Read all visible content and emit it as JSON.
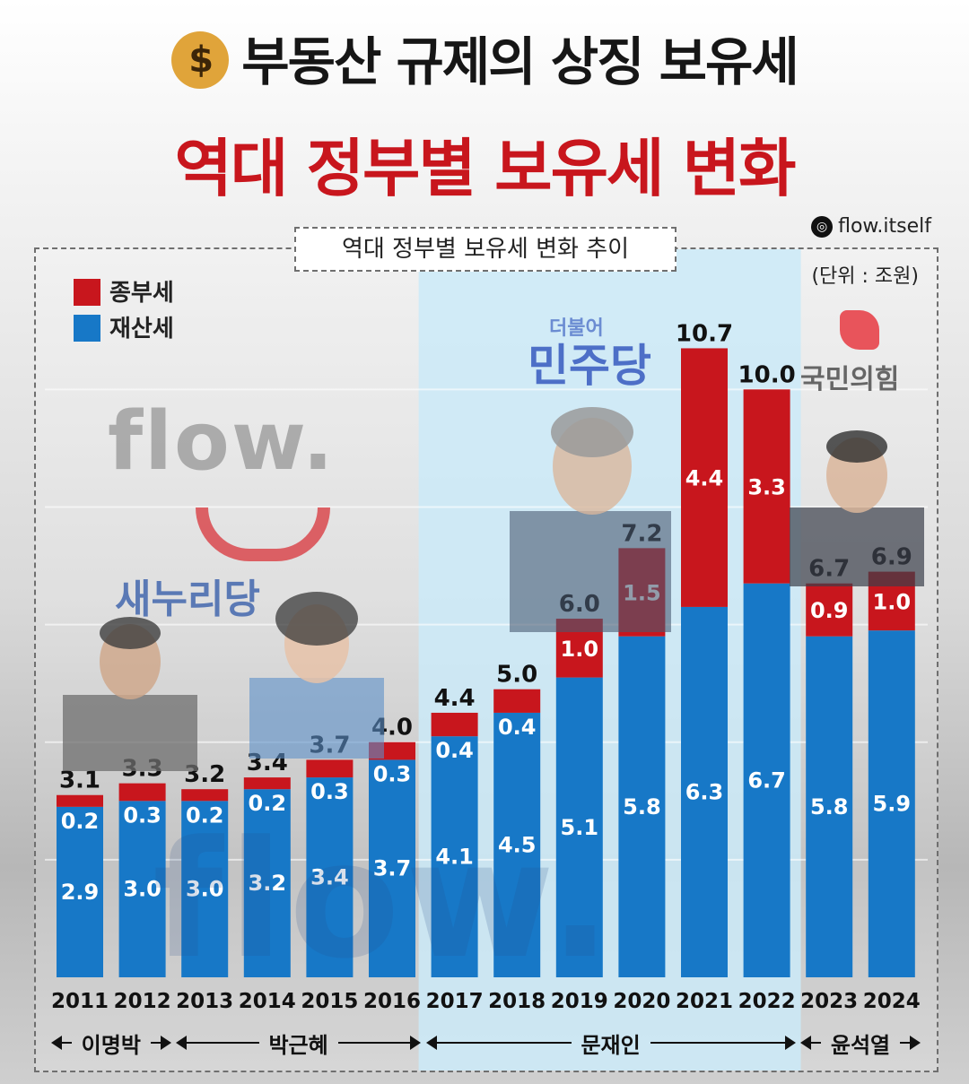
{
  "header": {
    "title": "부동산 규제의 상징 보유세",
    "subtitle": "역대 정부별 보유세 변화",
    "bag_icon": "money-bag-icon",
    "handle": "flow.itself",
    "handle_icon": "instagram-icon"
  },
  "chart_data": {
    "type": "bar",
    "stacked": true,
    "title": "역대 정부별 보유세 변화 추이",
    "unit": "(단위 : 조원)",
    "categories": [
      "2011",
      "2012",
      "2013",
      "2014",
      "2015",
      "2016",
      "2017",
      "2018",
      "2019",
      "2020",
      "2021",
      "2022",
      "2023",
      "2024"
    ],
    "series": [
      {
        "name": "재산세",
        "color": "#1778c7",
        "values": [
          2.9,
          3.0,
          3.0,
          3.2,
          3.4,
          3.7,
          4.1,
          4.5,
          5.1,
          5.8,
          6.3,
          6.7,
          5.8,
          5.9
        ]
      },
      {
        "name": "종부세",
        "color": "#c8161d",
        "values": [
          0.2,
          0.3,
          0.2,
          0.2,
          0.3,
          0.3,
          0.4,
          0.4,
          1.0,
          1.5,
          4.4,
          3.3,
          0.9,
          1.0
        ]
      }
    ],
    "totals": [
      "3.1",
      "3.3",
      "3.2",
      "3.4",
      "3.7",
      "4.0",
      "4.4",
      "5.0",
      "6.0",
      "7.2",
      "10.7",
      "10.0",
      "6.7",
      "6.9"
    ],
    "segment_labels": {
      "재산세": [
        "2.9",
        "3.0",
        "3.0",
        "3.2",
        "3.4",
        "3.7",
        "4.1",
        "4.5",
        "5.1",
        "5.8",
        "6.3",
        "6.7",
        "5.8",
        "5.9"
      ],
      "종부세": [
        "0.2",
        "0.3",
        "0.2",
        "0.2",
        "0.3",
        "0.3",
        "0.4",
        "0.4",
        "1.0",
        "1.5",
        "4.4",
        "3.3",
        "0.9",
        "1.0"
      ]
    },
    "ylim": [
      0,
      11.5
    ],
    "legend_position": "top-left",
    "highlight_band": {
      "from": "2017",
      "to": "2022",
      "color": "#cbeaf8"
    },
    "administrations": [
      {
        "name": "이명박",
        "from": "2011",
        "to": "2012"
      },
      {
        "name": "박근혜",
        "from": "2013",
        "to": "2016"
      },
      {
        "name": "문재인",
        "from": "2017",
        "to": "2022"
      },
      {
        "name": "윤석열",
        "from": "2023",
        "to": "2024"
      }
    ]
  },
  "decor": {
    "watermark": "flow.",
    "party_saenuri": "새누리당",
    "party_minjoo_small": "더불어",
    "party_minjoo": "민주당",
    "party_ppp": "국민의힘"
  }
}
